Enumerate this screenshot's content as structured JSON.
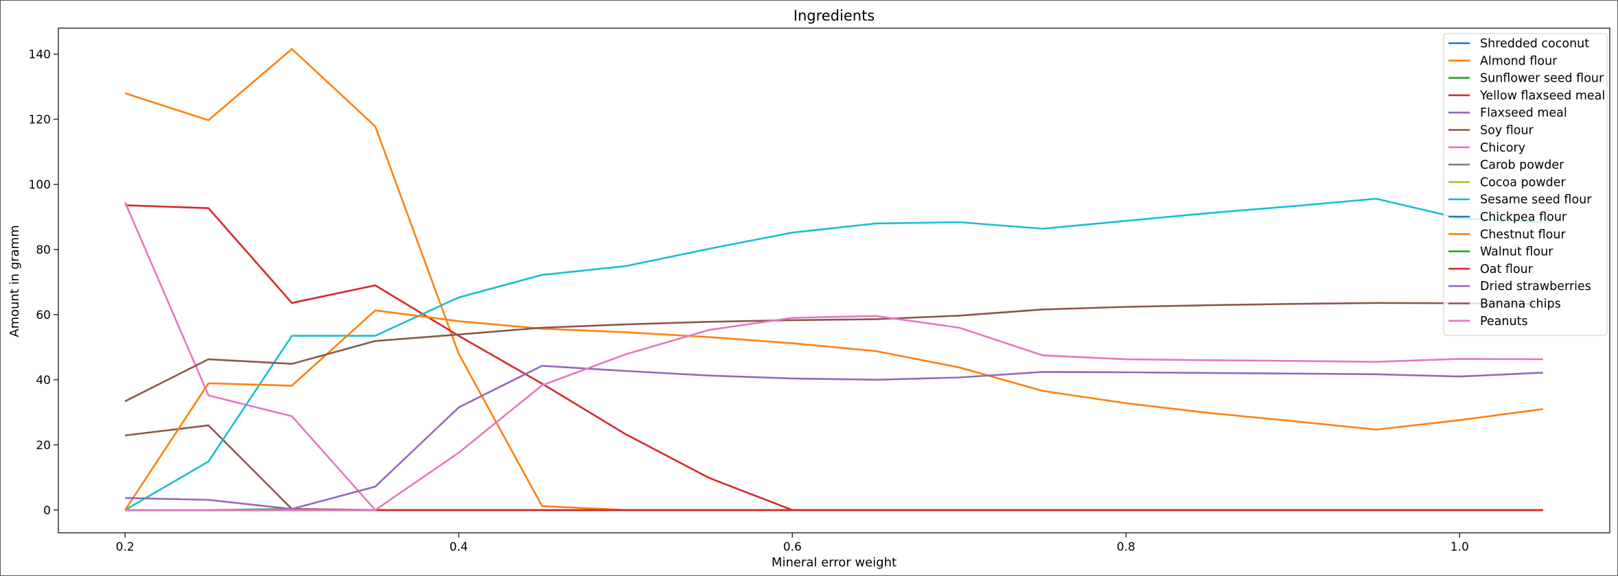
{
  "chart_data": {
    "type": "line",
    "title": "Ingredients",
    "xlabel": "Mineral error weight",
    "ylabel": "Amount in gramm",
    "xlim": [
      0.16,
      1.09
    ],
    "ylim": [
      -7,
      148
    ],
    "xticks": [
      0.2,
      0.4,
      0.6,
      0.8,
      1.0
    ],
    "xtick_labels": [
      "0.2",
      "0.4",
      "0.6",
      "0.8",
      "1.0"
    ],
    "yticks": [
      0,
      20,
      40,
      60,
      80,
      100,
      120,
      140
    ],
    "ytick_labels": [
      "0",
      "20",
      "40",
      "60",
      "80",
      "100",
      "120",
      "140"
    ],
    "grid": false,
    "legend_position": "top-right",
    "x": [
      0.2,
      0.25,
      0.3,
      0.35,
      0.4,
      0.45,
      0.5,
      0.55,
      0.6,
      0.65,
      0.7,
      0.75,
      0.8,
      0.85,
      0.9,
      0.95,
      1.0,
      1.05
    ],
    "series": [
      {
        "name": "Shredded coconut",
        "color": "#1f77b4",
        "values": [
          0,
          0,
          0,
          0,
          0,
          0,
          0,
          0,
          0,
          0,
          0,
          0,
          0,
          0,
          0,
          0,
          0,
          0
        ]
      },
      {
        "name": "Almond flour",
        "color": "#ff7f0e",
        "values": [
          128,
          119.7,
          141.6,
          117.8,
          48,
          1.2,
          0,
          0,
          0,
          0,
          0,
          0,
          0,
          0,
          0,
          0,
          0,
          0
        ]
      },
      {
        "name": "Sunflower seed flour",
        "color": "#2ca02c",
        "values": [
          0,
          0,
          0.3,
          0,
          null,
          null,
          null,
          null,
          null,
          null,
          null,
          null,
          null,
          null,
          null,
          null,
          null,
          null
        ]
      },
      {
        "name": "Yellow flaxseed meal",
        "color": "#d62728",
        "values": [
          93.6,
          92.7,
          63.6,
          69,
          53.5,
          38.8,
          23.3,
          9.9,
          0,
          null,
          null,
          null,
          null,
          null,
          null,
          null,
          null,
          null
        ]
      },
      {
        "name": "Flaxseed meal",
        "color": "#9467bd",
        "values": [
          0,
          0,
          0,
          0,
          0,
          0,
          0,
          0,
          0,
          0,
          0,
          0,
          0,
          0,
          0,
          0,
          0,
          0
        ]
      },
      {
        "name": "Soy flour",
        "color": "#8c564b",
        "values": [
          22.9,
          26,
          0.3,
          0,
          0,
          0,
          0,
          0,
          0,
          0,
          0,
          0,
          0,
          0,
          0,
          0,
          0,
          0
        ]
      },
      {
        "name": "Chicory",
        "color": "#e377c2",
        "values": [
          94.5,
          35.2,
          28.8,
          0,
          0,
          0,
          0,
          0,
          0,
          0,
          0,
          0,
          0,
          0,
          0,
          0,
          0,
          0
        ]
      },
      {
        "name": "Carob powder",
        "color": "#7f7f7f",
        "values": [
          0,
          0,
          0,
          0,
          0,
          0,
          0,
          0,
          0,
          0,
          0,
          0,
          0,
          0,
          0,
          0,
          0,
          0
        ]
      },
      {
        "name": "Cocoa powder",
        "color": "#bcbd22",
        "values": [
          0,
          0,
          0,
          0,
          0,
          0,
          0,
          0,
          0,
          0,
          0,
          0,
          0,
          0,
          0,
          0,
          0,
          0
        ]
      },
      {
        "name": "Sesame seed flour",
        "color": "#17becf",
        "values": [
          0,
          14.9,
          53.5,
          53.5,
          65.3,
          72.2,
          74.9,
          80.2,
          85.2,
          88,
          88.4,
          86.4,
          88.8,
          91.2,
          93.3,
          95.6,
          89.6,
          88.3
        ]
      },
      {
        "name": "Chickpea flour",
        "color": "#1f77b4",
        "values": [
          0,
          0,
          0,
          0,
          0,
          0,
          0,
          0,
          0,
          0,
          0,
          0,
          0,
          0,
          0,
          0,
          0,
          0
        ]
      },
      {
        "name": "Chestnut flour",
        "color": "#ff7f0e",
        "values": [
          0,
          38.9,
          38.2,
          61.3,
          58,
          55.7,
          54.6,
          53.1,
          51.2,
          48.8,
          43.8,
          36.6,
          32.8,
          29.8,
          27.3,
          24.7,
          27.6,
          31
        ]
      },
      {
        "name": "Walnut flour",
        "color": "#2ca02c",
        "values": [
          0,
          0,
          0,
          0,
          null,
          null,
          null,
          null,
          null,
          null,
          null,
          null,
          null,
          null,
          null,
          null,
          null,
          null
        ]
      },
      {
        "name": "Oat flour",
        "color": "#d62728",
        "values": [
          0,
          0,
          0,
          0,
          0,
          0,
          0,
          0,
          0,
          0,
          0,
          0,
          0,
          0,
          0,
          0,
          0,
          0
        ]
      },
      {
        "name": "Dried strawberries",
        "color": "#9467bd",
        "values": [
          3.7,
          3.1,
          0.3,
          7.2,
          31.5,
          44.3,
          42.7,
          41.3,
          40.4,
          40,
          40.7,
          42.4,
          42.3,
          42.1,
          41.9,
          41.7,
          41,
          42.2
        ]
      },
      {
        "name": "Banana chips",
        "color": "#8c564b",
        "values": [
          33.4,
          46.3,
          44.9,
          51.9,
          53.9,
          56,
          57,
          57.8,
          58.3,
          58.6,
          59.7,
          61.6,
          62.4,
          62.9,
          63.3,
          63.6,
          63.5,
          63.2
        ]
      },
      {
        "name": "Peanuts",
        "color": "#e377c2",
        "values": [
          0,
          0,
          0,
          0,
          17.6,
          38.3,
          47.8,
          55.3,
          59,
          59.6,
          56,
          47.5,
          46.3,
          46,
          45.8,
          45.5,
          46.4,
          46.3
        ]
      }
    ]
  }
}
